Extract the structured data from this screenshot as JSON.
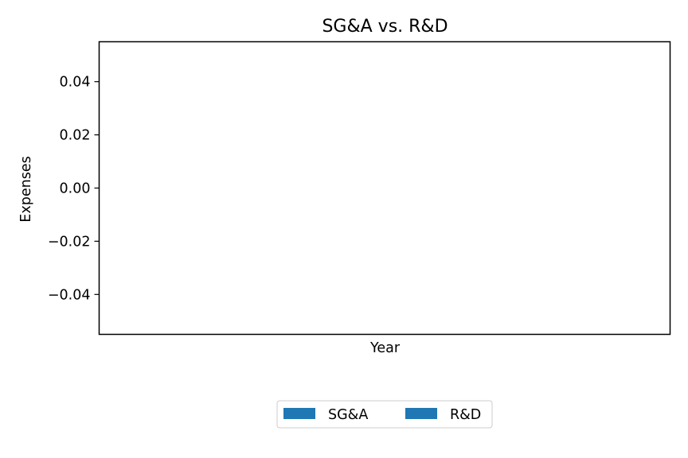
{
  "chart_data": {
    "type": "bar",
    "title": "SG&A vs. R&D",
    "xlabel": "Year",
    "ylabel": "Expenses",
    "categories": [],
    "series": [
      {
        "name": "SG&A",
        "values": [],
        "color": "#1f77b4"
      },
      {
        "name": "R&D",
        "values": [],
        "color": "#1f77b4"
      }
    ],
    "ylim": [
      -0.055,
      0.055
    ],
    "yticks": [
      0.04,
      0.02,
      0.0,
      -0.02,
      -0.04
    ],
    "ytick_labels": [
      "0.04",
      "0.02",
      "0.00",
      "−0.02",
      "−0.04"
    ],
    "grid": false,
    "legend_position": "bottom-center"
  }
}
